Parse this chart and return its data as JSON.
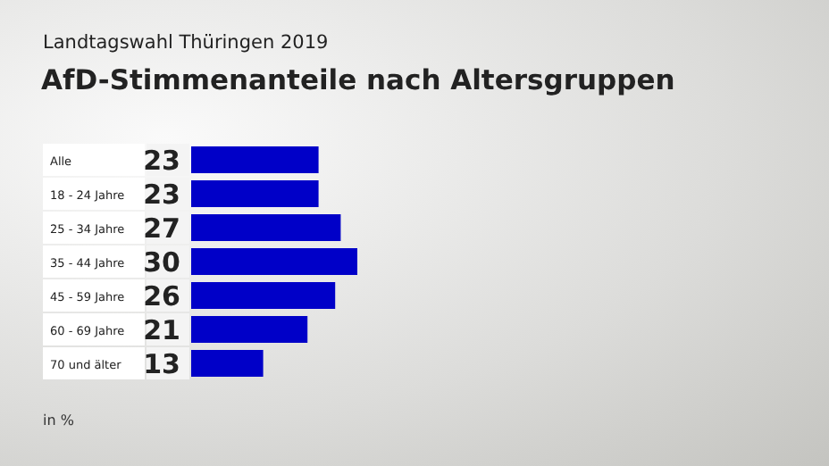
{
  "chart_data": {
    "type": "bar",
    "orientation": "horizontal",
    "subtitle": "Landtagswahl Thüringen 2019",
    "title": "AfD-Stimmenanteile nach Altersgruppen",
    "categories": [
      "Alle",
      "18 - 24 Jahre",
      "25 - 34 Jahre",
      "35 - 44 Jahre",
      "45 - 59 Jahre",
      "60 - 69 Jahre",
      "70 und älter"
    ],
    "values": [
      23,
      23,
      27,
      30,
      26,
      21,
      13
    ],
    "color": "#0000c8",
    "data_labels": true,
    "annotations": [
      "in %"
    ]
  }
}
